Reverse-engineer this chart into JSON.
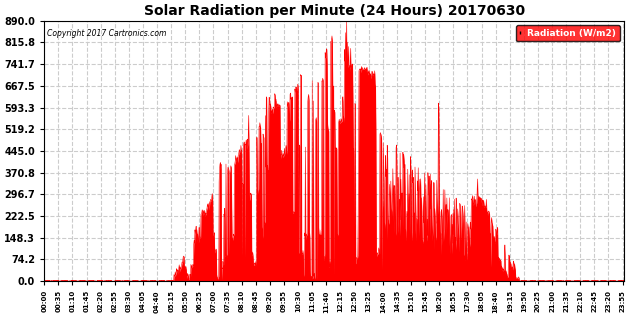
{
  "title": "Solar Radiation per Minute (24 Hours) 20170630",
  "copyright_text": "Copyright 2017 Cartronics.com",
  "legend_label": "Radiation (W/m2)",
  "background_color": "#ffffff",
  "fill_color": "#ff0000",
  "line_color": "#ff0000",
  "legend_bg": "#ff0000",
  "legend_text_color": "#ffffff",
  "grid_color": "#cccccc",
  "yticks": [
    0.0,
    74.2,
    148.3,
    222.5,
    296.7,
    370.8,
    445.0,
    519.2,
    593.3,
    667.5,
    741.7,
    815.8,
    890.0
  ],
  "ymax": 890.0,
  "ymin": 0.0,
  "total_minutes": 1440,
  "sunrise_minute": 320,
  "sunset_minute": 1180,
  "peak_minute": 750,
  "peak_value": 888.0
}
